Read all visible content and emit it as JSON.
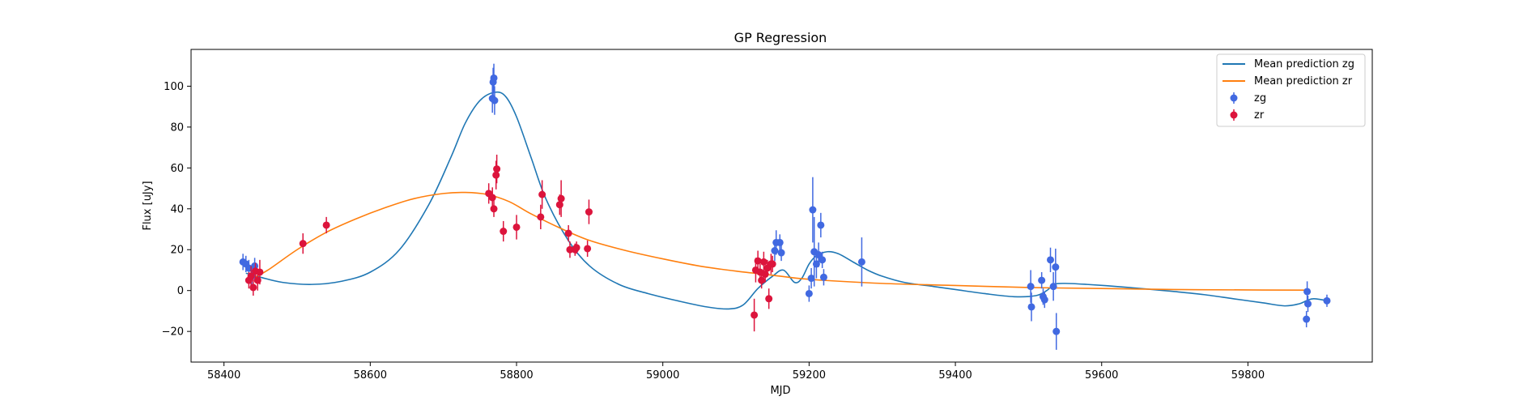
{
  "chart_data": {
    "type": "scatter",
    "title": "GP Regression",
    "xlabel": "MJD",
    "ylabel": "Flux [uJy]",
    "xlim": [
      58355,
      59970
    ],
    "ylim": [
      -35,
      118
    ],
    "xticks": [
      58400,
      58600,
      58800,
      59000,
      59200,
      59400,
      59600,
      59800
    ],
    "yticks": [
      -20,
      0,
      20,
      40,
      60,
      80,
      100
    ],
    "grid": false,
    "legend_position": "top-right",
    "colors": {
      "zg_line": "#1f77b4",
      "zr_line": "#ff7f0e",
      "zg_points": "#4169e1",
      "zr_points": "#dc143c"
    },
    "lines": [
      {
        "name": "Mean prediction zg",
        "color": "#1f77b4",
        "x": [
          58430,
          58450,
          58480,
          58520,
          58560,
          58600,
          58640,
          58680,
          58710,
          58730,
          58750,
          58770,
          58785,
          58800,
          58820,
          58840,
          58870,
          58900,
          58940,
          58980,
          59020,
          59060,
          59090,
          59110,
          59130,
          59150,
          59165,
          59180,
          59190,
          59200,
          59210,
          59225,
          59240,
          59260,
          59280,
          59300,
          59330,
          59370,
          59400,
          59440,
          59480,
          59510,
          59525,
          59535,
          59550,
          59580,
          59620,
          59660,
          59700,
          59740,
          59780,
          59820,
          59850,
          59870,
          59880,
          59890,
          59910
        ],
        "y": [
          8.5,
          6.5,
          4,
          3,
          4.5,
          9,
          20,
          42,
          65,
          82,
          93,
          97,
          95,
          85,
          65,
          45,
          25,
          12,
          3,
          -1.5,
          -5,
          -8,
          -9,
          -7,
          1,
          7,
          10,
          4,
          6,
          13,
          17,
          19,
          18,
          14,
          10,
          7,
          4,
          2,
          0.5,
          -1.5,
          -3,
          -2.5,
          0,
          3,
          3.5,
          3,
          2,
          0.8,
          -0.5,
          -2,
          -4,
          -6,
          -7.5,
          -6.5,
          -5,
          -4,
          -5
        ]
      },
      {
        "name": "Mean prediction zr",
        "color": "#ff7f0e",
        "x": [
          58440,
          58460,
          58500,
          58540,
          58580,
          58620,
          58660,
          58700,
          58730,
          58760,
          58790,
          58820,
          58860,
          58900,
          58950,
          59000,
          59050,
          59100,
          59150,
          59200,
          59300,
          59400,
          59500,
          59600,
          59700,
          59800,
          59880
        ],
        "y": [
          6,
          10,
          20,
          28.5,
          35,
          40.5,
          45,
          47.5,
          48,
          47,
          43.5,
          37.5,
          30.5,
          24.5,
          19.5,
          15.5,
          12,
          9.5,
          7.5,
          5.5,
          3.5,
          2.5,
          1.5,
          1,
          0.5,
          0.3,
          0.2
        ]
      }
    ],
    "series": [
      {
        "name": "zg",
        "color": "#4169e1",
        "x": [
          58426,
          58430,
          58434,
          58438,
          58442,
          58767,
          58768,
          58769,
          58770,
          59153,
          59155,
          59160,
          59162,
          59200,
          59203,
          59205,
          59207,
          59210,
          59213,
          59216,
          59218,
          59220,
          59272,
          59503,
          59504,
          59518,
          59520,
          59522,
          59530,
          59534,
          59537,
          59538,
          59880,
          59881,
          59882,
          59908
        ],
        "y": [
          14,
          13,
          11,
          7,
          12,
          94,
          102,
          104,
          93,
          19.5,
          23.5,
          23.5,
          18.5,
          -1.5,
          6,
          39.5,
          19,
          13,
          17.5,
          32,
          15,
          6.5,
          14,
          2,
          -8,
          5,
          -3,
          -4.5,
          15,
          2,
          11.5,
          -20,
          -14,
          -0.5,
          -6.5,
          -5
        ],
        "err": [
          4,
          4,
          4,
          4,
          4,
          7,
          7,
          7,
          7,
          5,
          6,
          4,
          4,
          4,
          5,
          16,
          17,
          7,
          6,
          6,
          4,
          4,
          12,
          8,
          7,
          4,
          4,
          4,
          6,
          7,
          9,
          9,
          4,
          5,
          4,
          3
        ]
      },
      {
        "name": "zr",
        "color": "#dc143c",
        "x": [
          58434,
          58437,
          58440,
          58443,
          58446,
          58449,
          58508,
          58540,
          58762,
          58767,
          58769,
          58772,
          58773,
          58782,
          58800,
          58833,
          58835,
          58859,
          58861,
          58871,
          58873,
          58880,
          58882,
          58897,
          58899,
          59125,
          59127,
          59130,
          59133,
          59135,
          59138,
          59140,
          59143,
          59145,
          59148,
          59150
        ],
        "y": [
          5,
          7,
          1.5,
          9.5,
          5,
          9,
          23,
          32,
          47.5,
          45.5,
          40,
          56.5,
          59.5,
          29,
          31,
          36,
          47,
          42,
          45,
          28,
          20,
          20,
          21,
          20.5,
          38.5,
          -12,
          10,
          14.5,
          9,
          5,
          14,
          8,
          11,
          -4,
          13,
          13
        ],
        "err": [
          4,
          5,
          4,
          4,
          5,
          6,
          5,
          4,
          5,
          5,
          4,
          7,
          7,
          5,
          6,
          6,
          7,
          5,
          9,
          4,
          4,
          3,
          3,
          4,
          6,
          8,
          6,
          5,
          4,
          4,
          5,
          4,
          4,
          5,
          5,
          4
        ]
      }
    ]
  }
}
